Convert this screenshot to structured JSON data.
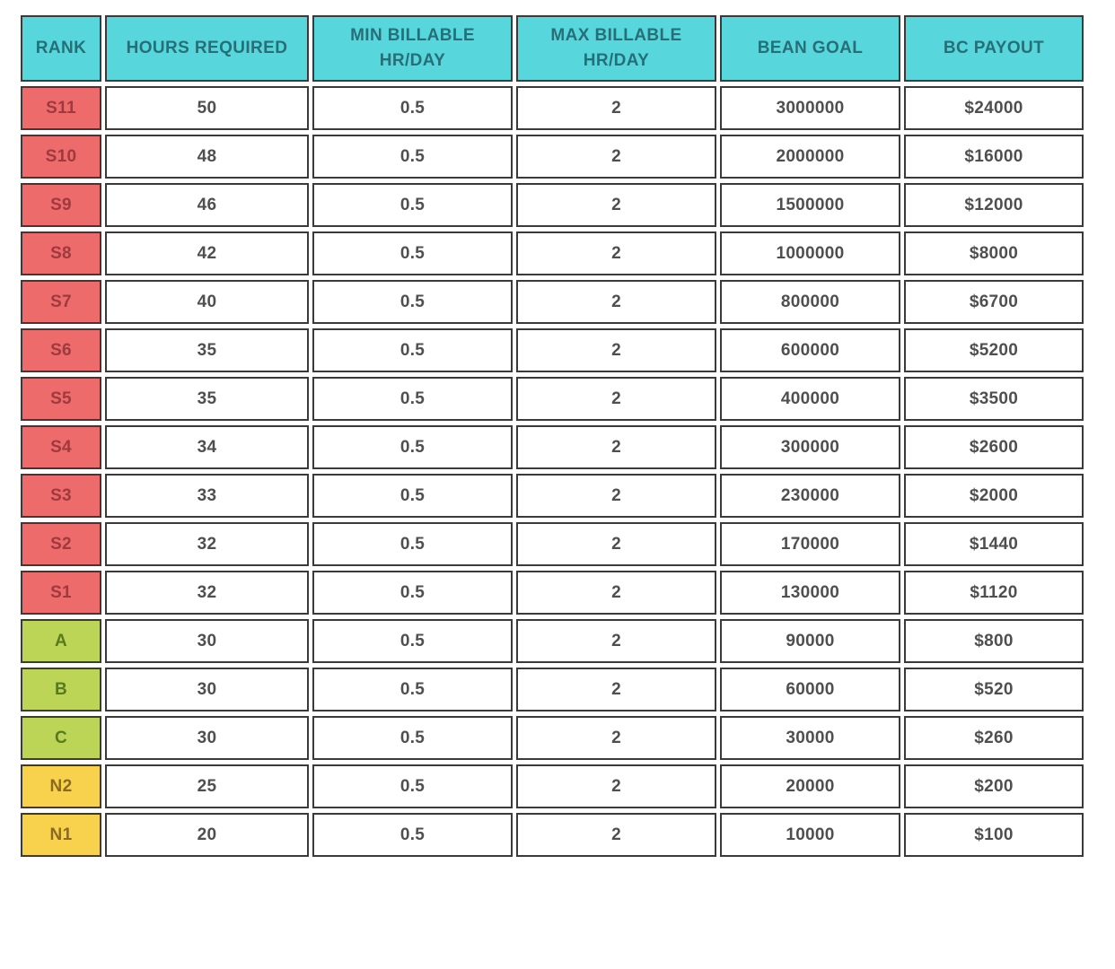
{
  "chart_data": {
    "type": "table",
    "columns": [
      "RANK",
      "HOURS REQUIRED",
      "MIN BILLABLE HR/DAY",
      "MAX BILLABLE HR/DAY",
      "BEAN GOAL",
      "BC PAYOUT"
    ],
    "column_keys": [
      "rank",
      "hours-required",
      "min-billable-hr-day",
      "max-billable-hr-day",
      "bean-goal",
      "bc-payout"
    ],
    "rows": [
      {
        "rank": "S11",
        "tier": "s",
        "values": [
          "50",
          "0.5",
          "2",
          "3000000",
          "$24000"
        ]
      },
      {
        "rank": "S10",
        "tier": "s",
        "values": [
          "48",
          "0.5",
          "2",
          "2000000",
          "$16000"
        ]
      },
      {
        "rank": "S9",
        "tier": "s",
        "values": [
          "46",
          "0.5",
          "2",
          "1500000",
          "$12000"
        ]
      },
      {
        "rank": "S8",
        "tier": "s",
        "values": [
          "42",
          "0.5",
          "2",
          "1000000",
          "$8000"
        ]
      },
      {
        "rank": "S7",
        "tier": "s",
        "values": [
          "40",
          "0.5",
          "2",
          "800000",
          "$6700"
        ]
      },
      {
        "rank": "S6",
        "tier": "s",
        "values": [
          "35",
          "0.5",
          "2",
          "600000",
          "$5200"
        ]
      },
      {
        "rank": "S5",
        "tier": "s",
        "values": [
          "35",
          "0.5",
          "2",
          "400000",
          "$3500"
        ]
      },
      {
        "rank": "S4",
        "tier": "s",
        "values": [
          "34",
          "0.5",
          "2",
          "300000",
          "$2600"
        ]
      },
      {
        "rank": "S3",
        "tier": "s",
        "values": [
          "33",
          "0.5",
          "2",
          "230000",
          "$2000"
        ]
      },
      {
        "rank": "S2",
        "tier": "s",
        "values": [
          "32",
          "0.5",
          "2",
          "170000",
          "$1440"
        ]
      },
      {
        "rank": "S1",
        "tier": "s",
        "values": [
          "32",
          "0.5",
          "2",
          "130000",
          "$1120"
        ]
      },
      {
        "rank": "A",
        "tier": "letter",
        "values": [
          "30",
          "0.5",
          "2",
          "90000",
          "$800"
        ]
      },
      {
        "rank": "B",
        "tier": "letter",
        "values": [
          "30",
          "0.5",
          "2",
          "60000",
          "$520"
        ]
      },
      {
        "rank": "C",
        "tier": "letter",
        "values": [
          "30",
          "0.5",
          "2",
          "30000",
          "$260"
        ]
      },
      {
        "rank": "N2",
        "tier": "n",
        "values": [
          "25",
          "0.5",
          "2",
          "20000",
          "$200"
        ]
      },
      {
        "rank": "N1",
        "tier": "n",
        "values": [
          "20",
          "0.5",
          "2",
          "10000",
          "$100"
        ]
      }
    ]
  },
  "colors": {
    "header_bg": "#57d7db",
    "header_text": "#276f78",
    "rank_s_bg": "#ed6b6b",
    "rank_s_text": "#9e3a3e",
    "rank_letter_bg": "#bcd556",
    "rank_letter_text": "#587a1f",
    "rank_n_bg": "#f8d24c",
    "rank_n_text": "#8a6a24",
    "cell_text": "#4f4f4f",
    "cell_bg": "#ffffff",
    "border": "#3a3a3a",
    "page_bg": "#ffffff"
  }
}
